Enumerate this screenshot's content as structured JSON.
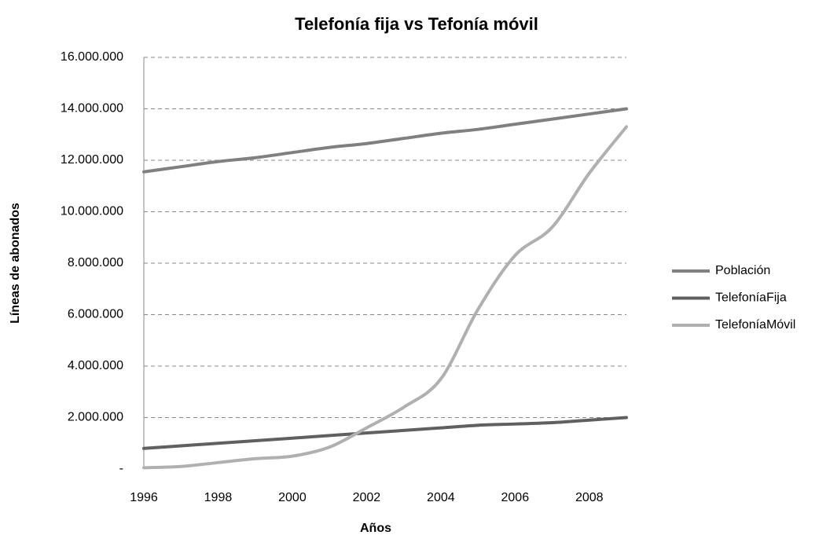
{
  "chart_data": {
    "type": "line",
    "title": "Telefonía fija vs Tefonía móvil",
    "x_label": "Años",
    "y_label": "Líneas de abonados",
    "x": [
      1996,
      1997,
      1998,
      1999,
      2000,
      2001,
      2002,
      2003,
      2004,
      2005,
      2006,
      2007,
      2008,
      2009
    ],
    "series": [
      {
        "name": "Población",
        "color": "#808080",
        "values": [
          11550000,
          11750000,
          11950000,
          12100000,
          12300000,
          12500000,
          12650000,
          12850000,
          13050000,
          13200000,
          13400000,
          13600000,
          13800000,
          14000000
        ]
      },
      {
        "name": "TelefoníaFija",
        "color": "#606060",
        "values": [
          800000,
          900000,
          1000000,
          1100000,
          1200000,
          1300000,
          1400000,
          1500000,
          1600000,
          1700000,
          1750000,
          1800000,
          1900000,
          2000000
        ]
      },
      {
        "name": "TelefoníaMóvil",
        "color": "#b0b0b0",
        "values": [
          50000,
          100000,
          250000,
          400000,
          500000,
          850000,
          1600000,
          2400000,
          3500000,
          6200000,
          8300000,
          9400000,
          11500000,
          13300000
        ]
      }
    ],
    "xlim": [
      1996,
      2009
    ],
    "xticks": [
      1996,
      1998,
      2000,
      2002,
      2004,
      2006,
      2008
    ],
    "ylim": [
      0,
      16000000
    ],
    "yticks": [
      {
        "value": 0,
        "label": "-"
      },
      {
        "value": 2000000,
        "label": "2.000.000"
      },
      {
        "value": 4000000,
        "label": "4.000.000"
      },
      {
        "value": 6000000,
        "label": "6.000.000"
      },
      {
        "value": 8000000,
        "label": "8.000.000"
      },
      {
        "value": 10000000,
        "label": "10.000.000"
      },
      {
        "value": 12000000,
        "label": "12.000.000"
      },
      {
        "value": 14000000,
        "label": "14.000.000"
      },
      {
        "value": 16000000,
        "label": "16.000.000"
      }
    ],
    "grid": true,
    "legend": "right"
  }
}
